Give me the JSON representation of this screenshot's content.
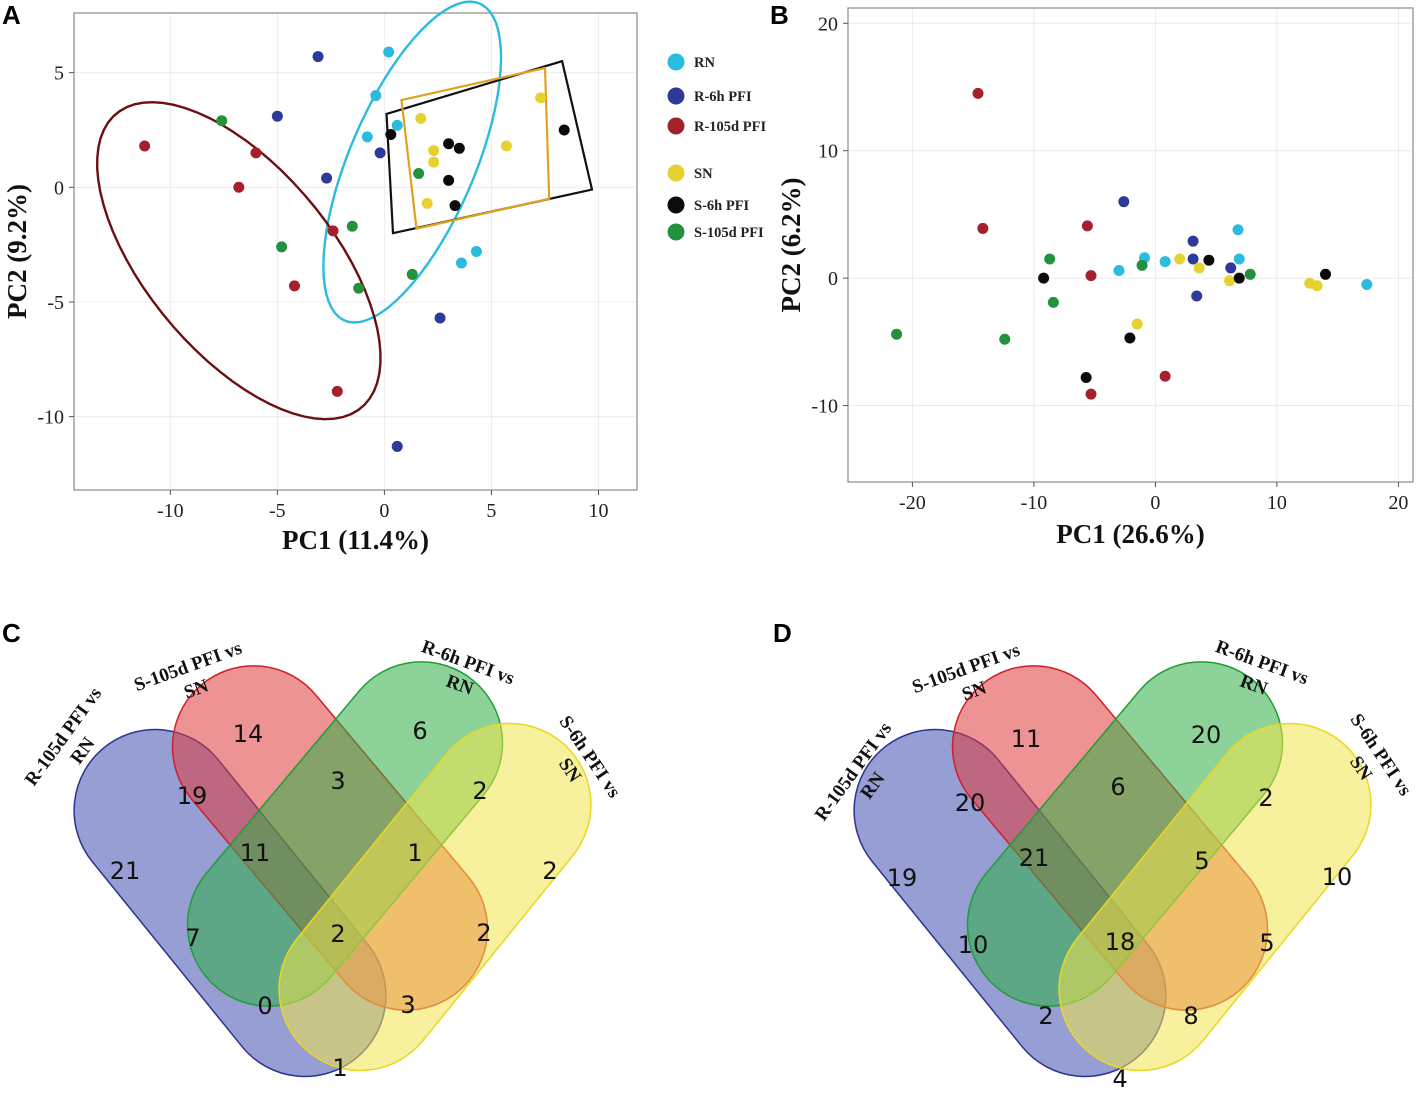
{
  "colors": {
    "RN": "#2bbbe0",
    "R-6h PFI": "#2e3a97",
    "R-105d PFI": "#a3202c",
    "SN": "#e6d22e",
    "S-6h PFI": "#0b0b0b",
    "S-105d PFI": "#23913e"
  },
  "chart_data": [
    {
      "panel": "A",
      "type": "scatter",
      "xlabel": "PC1 (11.4%)",
      "ylabel": "PC2 (9.2%)",
      "xlim": [
        -14.5,
        11.8
      ],
      "ylim": [
        -13.2,
        7.6
      ],
      "xticks": [
        -10,
        -5,
        0,
        5,
        10
      ],
      "yticks": [
        5,
        0,
        -5,
        -10
      ],
      "legend": [
        "RN",
        "R-6h PFI",
        "R-105d PFI",
        "SN",
        "S-6h PFI",
        "S-105d PFI"
      ],
      "series": [
        {
          "name": "RN",
          "points": [
            [
              0.2,
              5.9
            ],
            [
              -0.4,
              4.0
            ],
            [
              0.6,
              2.7
            ],
            [
              -0.8,
              2.2
            ],
            [
              4.3,
              -2.8
            ],
            [
              3.6,
              -3.3
            ]
          ]
        },
        {
          "name": "R-6h PFI",
          "points": [
            [
              -3.1,
              5.7
            ],
            [
              -5.0,
              3.1
            ],
            [
              -0.2,
              1.5
            ],
            [
              -2.7,
              0.4
            ],
            [
              2.6,
              -5.7
            ],
            [
              0.6,
              -11.3
            ]
          ]
        },
        {
          "name": "R-105d PFI",
          "points": [
            [
              -11.2,
              1.8
            ],
            [
              -6.0,
              1.5
            ],
            [
              -6.8,
              0.0
            ],
            [
              -2.4,
              -1.9
            ],
            [
              -4.2,
              -4.3
            ],
            [
              -2.2,
              -8.9
            ]
          ]
        },
        {
          "name": "SN",
          "points": [
            [
              7.3,
              3.9
            ],
            [
              1.7,
              3.0
            ],
            [
              5.7,
              1.8
            ],
            [
              2.3,
              1.6
            ],
            [
              2.3,
              1.1
            ],
            [
              2.0,
              -0.7
            ]
          ]
        },
        {
          "name": "S-6h PFI",
          "points": [
            [
              8.4,
              2.5
            ],
            [
              0.3,
              2.3
            ],
            [
              3.0,
              1.9
            ],
            [
              3.5,
              1.7
            ],
            [
              3.0,
              0.3
            ],
            [
              3.3,
              -0.8
            ]
          ]
        },
        {
          "name": "S-105d PFI",
          "points": [
            [
              -7.6,
              2.9
            ],
            [
              -4.8,
              -2.6
            ],
            [
              -1.5,
              -1.7
            ],
            [
              1.6,
              0.6
            ],
            [
              1.3,
              -3.8
            ],
            [
              -1.2,
              -4.4
            ]
          ]
        }
      ],
      "annotations": [
        {
          "shape": "ellipse",
          "group": "RN",
          "color": "#2bbbe0",
          "center": [
            1.3,
            1.1
          ],
          "semi_axes": [
            2.9,
            7.6
          ],
          "rotation_deg": -25
        },
        {
          "shape": "ellipse",
          "group": "R-105d PFI",
          "color": "#6b0f12",
          "center": [
            -6.8,
            -3.2
          ],
          "semi_axes": [
            4.2,
            8.6
          ],
          "rotation_deg": 43
        },
        {
          "shape": "box",
          "group": "S-6h PFI",
          "color": "#111111",
          "corners": [
            [
              0.1,
              3.2
            ],
            [
              8.3,
              5.5
            ],
            [
              9.7,
              -0.1
            ],
            [
              0.4,
              -2.0
            ]
          ]
        },
        {
          "shape": "box",
          "group": "SN",
          "color": "#e0a21e",
          "corners": [
            [
              0.8,
              3.8
            ],
            [
              7.5,
              5.2
            ],
            [
              7.7,
              -0.5
            ],
            [
              1.5,
              -1.8
            ]
          ]
        }
      ]
    },
    {
      "panel": "B",
      "type": "scatter",
      "xlabel": "PC1 (26.6%)",
      "ylabel": "PC2 (6.2%)",
      "xlim": [
        -25.3,
        21.2
      ],
      "ylim": [
        -16.0,
        21.2
      ],
      "xticks": [
        -20,
        -10,
        0,
        10,
        20
      ],
      "yticks": [
        20,
        10,
        0,
        -10
      ],
      "series": [
        {
          "name": "RN",
          "points": [
            [
              6.8,
              3.8
            ],
            [
              -0.9,
              1.6
            ],
            [
              0.8,
              1.3
            ],
            [
              6.9,
              1.5
            ],
            [
              -3.0,
              0.6
            ],
            [
              17.4,
              -0.5
            ]
          ]
        },
        {
          "name": "R-6h PFI",
          "points": [
            [
              -2.6,
              6.0
            ],
            [
              3.1,
              2.9
            ],
            [
              3.1,
              1.5
            ],
            [
              6.2,
              0.8
            ],
            [
              3.4,
              -1.4
            ]
          ]
        },
        {
          "name": "R-105d PFI",
          "points": [
            [
              -14.6,
              14.5
            ],
            [
              -14.2,
              3.9
            ],
            [
              -5.6,
              4.1
            ],
            [
              -5.3,
              0.2
            ],
            [
              -5.3,
              -9.1
            ],
            [
              0.8,
              -7.7
            ]
          ]
        },
        {
          "name": "SN",
          "points": [
            [
              2.0,
              1.5
            ],
            [
              3.6,
              0.8
            ],
            [
              6.1,
              -0.2
            ],
            [
              12.7,
              -0.4
            ],
            [
              13.3,
              -0.6
            ],
            [
              -1.5,
              -3.6
            ]
          ]
        },
        {
          "name": "S-6h PFI",
          "points": [
            [
              4.4,
              1.4
            ],
            [
              6.9,
              0.0
            ],
            [
              14.0,
              0.3
            ],
            [
              -9.2,
              0.0
            ],
            [
              -2.1,
              -4.7
            ],
            [
              -5.7,
              -7.8
            ]
          ]
        },
        {
          "name": "S-105d PFI",
          "points": [
            [
              -8.7,
              1.5
            ],
            [
              -1.1,
              1.0
            ],
            [
              7.8,
              0.3
            ],
            [
              -8.4,
              -1.9
            ],
            [
              -12.4,
              -4.8
            ],
            [
              -21.3,
              -4.4
            ]
          ]
        }
      ]
    }
  ],
  "venn": [
    {
      "panel": "C",
      "sets": [
        "R-105d PFI vs RN",
        "S-105d PFI vs SN",
        "R-6h PFI vs RN",
        "S-6h PFI vs SN"
      ],
      "labels": [
        {
          "lines": [
            "R-105d PFI vs",
            "RN"
          ]
        },
        {
          "lines": [
            "S-105d PFI vs",
            "SN"
          ]
        },
        {
          "lines": [
            "R-6h PFI vs",
            "RN"
          ]
        },
        {
          "lines": [
            "S-6h PFI vs",
            "SN"
          ]
        }
      ],
      "counts": {
        "A": "21",
        "B": "14",
        "C": "6",
        "D": "2",
        "AB": "19",
        "BC": "3",
        "CD": "2",
        "AC": "7",
        "BD": "2",
        "AD": "1",
        "ABC": "11",
        "BCD": "1",
        "ACD": "0",
        "ABD": "3",
        "ABCD": "2"
      }
    },
    {
      "panel": "D",
      "sets": [
        "R-105d PFI vs RN",
        "S-105d PFI vs SN",
        "R-6h PFI vs RN",
        "S-6h PFI vs SN"
      ],
      "labels": [
        {
          "lines": [
            "R-105d PFI vs",
            "RN"
          ]
        },
        {
          "lines": [
            "S-105d PFI vs",
            "SN"
          ]
        },
        {
          "lines": [
            "R-6h PFI vs",
            "RN"
          ]
        },
        {
          "lines": [
            "S-6h PFI vs",
            "SN"
          ]
        }
      ],
      "counts": {
        "A": "19",
        "B": "11",
        "C": "20",
        "D": "10",
        "AB": "20",
        "BC": "6",
        "CD": "2",
        "AC": "10",
        "BD": "5",
        "AD": "4",
        "ABC": "21",
        "BCD": "5",
        "ACD": "2",
        "ABD": "8",
        "ABCD": "18"
      }
    }
  ],
  "venn_colors": [
    "#3f4fb0",
    "#e03a3a",
    "#2fae45",
    "#f0e44a"
  ],
  "venn_stroke": [
    "#2a3392",
    "#d01f2a",
    "#1f9e34",
    "#e8d820"
  ]
}
